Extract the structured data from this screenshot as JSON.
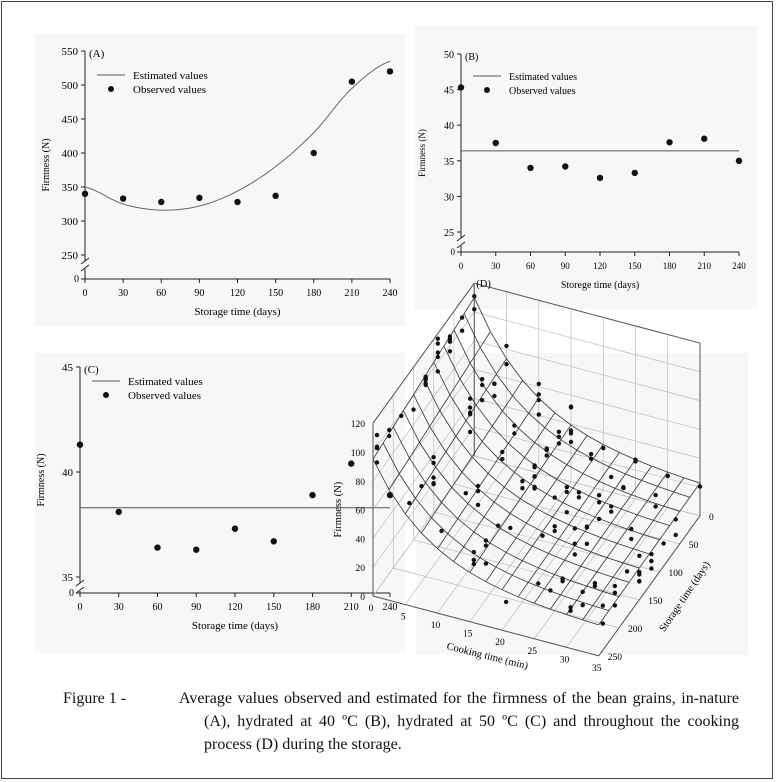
{
  "figure": {
    "caption_label": "Figure 1 -",
    "caption_text": "Average values observed and estimated for the firmness of the bean grains, in-nature (A), hydrated at 40 ºC (B), hydrated at 50 ºC (C) and throughout the cooking process (D) during the storage."
  },
  "chart_data": [
    {
      "panel": "A",
      "type": "scatter",
      "title": "(A)",
      "xlabel": "Storage time  (days)",
      "ylabel": "Firmness (N)",
      "xticks": [
        0,
        30,
        60,
        90,
        120,
        150,
        180,
        210,
        240
      ],
      "yticks": [
        250,
        300,
        350,
        400,
        450,
        500,
        550
      ],
      "ylim": [
        250,
        550
      ],
      "axis_break_label": "0",
      "legend": [
        "Estimated values",
        "Observed values"
      ],
      "legend_position": "top-left",
      "observed": {
        "x": [
          0,
          30,
          60,
          90,
          120,
          150,
          180,
          210,
          240
        ],
        "y": [
          340,
          333,
          328,
          334,
          328,
          337,
          400,
          505,
          520
        ]
      },
      "estimated_curve": {
        "type": "quadratic",
        "x": [
          0,
          30,
          60,
          90,
          120,
          150,
          180,
          210,
          240
        ],
        "y": [
          350,
          325,
          316,
          322,
          344,
          380,
          430,
          495,
          535
        ]
      }
    },
    {
      "panel": "B",
      "type": "scatter",
      "title": "(B)",
      "xlabel": "Storege time (days)",
      "ylabel": "Firmness (N)",
      "xticks": [
        0,
        30,
        60,
        90,
        120,
        150,
        180,
        210,
        240
      ],
      "yticks": [
        25,
        30,
        35,
        40,
        45,
        50
      ],
      "ylim": [
        25,
        50
      ],
      "axis_break_label": "0",
      "legend": [
        "Estimated values",
        "Observed values"
      ],
      "legend_position": "top-left",
      "observed": {
        "x": [
          0,
          30,
          60,
          90,
          120,
          150,
          180,
          210,
          240
        ],
        "y": [
          45.3,
          37.5,
          34.0,
          34.2,
          32.6,
          33.3,
          37.6,
          38.1,
          35.0
        ]
      },
      "estimated_line": 36.4
    },
    {
      "panel": "C",
      "type": "scatter",
      "title": "(C)",
      "xlabel": "Storage time (days)",
      "ylabel": "Firmness (N)",
      "xticks": [
        0,
        30,
        60,
        90,
        120,
        150,
        180,
        210,
        240
      ],
      "yticks": [
        35,
        40,
        45
      ],
      "ylim": [
        35,
        45
      ],
      "axis_break_label": "0",
      "legend": [
        "Estimated values",
        "Observed values"
      ],
      "legend_position": "top-left",
      "observed": {
        "x": [
          0,
          30,
          60,
          90,
          120,
          150,
          180,
          210,
          240
        ],
        "y": [
          41.3,
          38.1,
          36.4,
          36.3,
          37.3,
          36.7,
          38.9,
          40.4,
          38.9
        ]
      },
      "estimated_line": 38.3
    },
    {
      "panel": "D",
      "type": "scatter",
      "title": "(D)",
      "xlabel": "Cooking time (min)",
      "ylabel": "Firmness (N)",
      "zlabel": "Storage time (days)",
      "xticks": [
        0,
        5,
        10,
        15,
        20,
        25,
        30,
        35
      ],
      "zticks": [
        0,
        50,
        100,
        150,
        200,
        250
      ],
      "yticks": [
        0,
        20,
        40,
        60,
        80,
        100,
        120
      ],
      "surface": "Estimated surface of firmness over cooking time and storage time"
    }
  ]
}
